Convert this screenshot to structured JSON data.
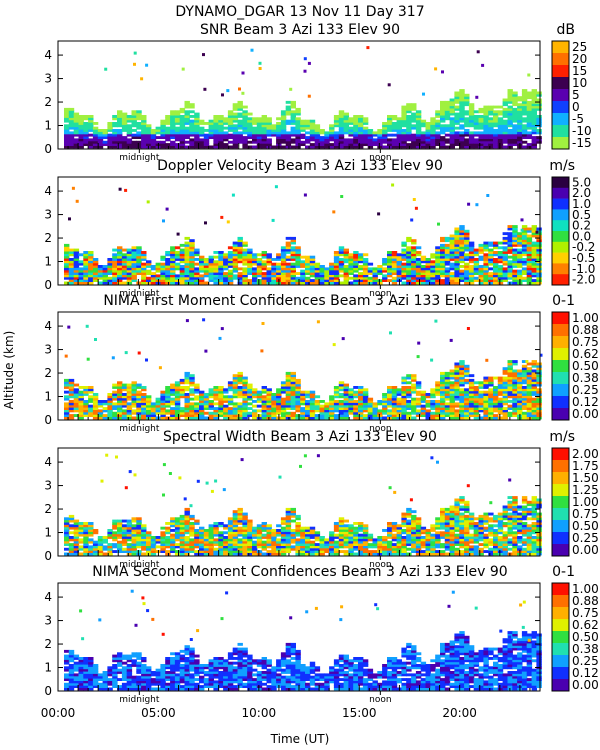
{
  "figure": {
    "title": "DYNAMO_DGAR  13 Nov 11 Day 317",
    "ylabel": "Altitude (km)",
    "xlabel": "Time (UT)",
    "x_tick_labels": [
      "00:00",
      "05:00",
      "10:00",
      "15:00",
      "20:00"
    ],
    "y_tick_labels": [
      "0",
      "1",
      "2",
      "3",
      "4"
    ],
    "marker_labels": [
      "midnight",
      "noon"
    ]
  },
  "chart_data": [
    {
      "type": "heatmap",
      "title": "SNR Beam 3 Azi 133 Elev 90",
      "units": "dB",
      "xlim": [
        0,
        24
      ],
      "ylim": [
        0,
        4.6
      ],
      "colorbar": {
        "labels": [
          "25",
          "20",
          "15",
          "10",
          "5",
          "0",
          "-5",
          "-10",
          "-15"
        ],
        "colors": [
          "#ffb400",
          "#ff7000",
          "#ff2000",
          "#3c0050",
          "#5a00b0",
          "#1040ff",
          "#10b0ff",
          "#20e0a0",
          "#a0f040"
        ]
      }
    },
    {
      "type": "heatmap",
      "title": "Doppler Velocity Beam 3 Azi 133 Elev 90",
      "units": "m/s",
      "xlim": [
        0,
        24
      ],
      "ylim": [
        0,
        4.6
      ],
      "colorbar": {
        "labels": [
          "5.0",
          "2.0",
          "1.0",
          "0.5",
          "0.2",
          "0.0",
          "-0.2",
          "-0.5",
          "-1.0",
          "-2.0"
        ],
        "colors": [
          "#2a0040",
          "#4a00b0",
          "#1030ff",
          "#10a0ff",
          "#10e0c0",
          "#30e040",
          "#b0f000",
          "#ffd000",
          "#ff8000",
          "#ff2000"
        ]
      }
    },
    {
      "type": "heatmap",
      "title": "NIMA First Moment Confidences Beam 3 Azi 133 Elev 90",
      "units": "0-1",
      "xlim": [
        0,
        24
      ],
      "ylim": [
        0,
        4.6
      ],
      "colorbar": {
        "labels": [
          "1.00",
          "0.88",
          "0.75",
          "0.62",
          "0.50",
          "0.38",
          "0.25",
          "0.12",
          "0.00"
        ],
        "colors": [
          "#ff1000",
          "#ff7000",
          "#ffb000",
          "#e0f000",
          "#30e040",
          "#20e0b0",
          "#10a0ff",
          "#1030ff",
          "#4a00b0"
        ]
      }
    },
    {
      "type": "heatmap",
      "title": "Spectral Width Beam 3 Azi 133 Elev 90",
      "units": "m/s",
      "xlim": [
        0,
        24
      ],
      "ylim": [
        0,
        4.6
      ],
      "colorbar": {
        "labels": [
          "2.00",
          "1.75",
          "1.50",
          "1.25",
          "1.00",
          "0.75",
          "0.50",
          "0.25",
          "0.00"
        ],
        "colors": [
          "#ff1000",
          "#ff7000",
          "#ffb000",
          "#e0f000",
          "#30e040",
          "#20e0b0",
          "#10a0ff",
          "#1030ff",
          "#4a00b0"
        ]
      }
    },
    {
      "type": "heatmap",
      "title": "NIMA Second Moment Confidences Beam 3 Azi 133 Elev 90",
      "units": "0-1",
      "xlim": [
        0,
        24
      ],
      "ylim": [
        0,
        4.6
      ],
      "colorbar": {
        "labels": [
          "1.00",
          "0.88",
          "0.75",
          "0.62",
          "0.50",
          "0.38",
          "0.25",
          "0.12",
          "0.00"
        ],
        "colors": [
          "#ff1000",
          "#ff7000",
          "#ffb000",
          "#e0f000",
          "#30e040",
          "#20e0b0",
          "#10a0ff",
          "#1030ff",
          "#4a00b0"
        ]
      }
    }
  ]
}
